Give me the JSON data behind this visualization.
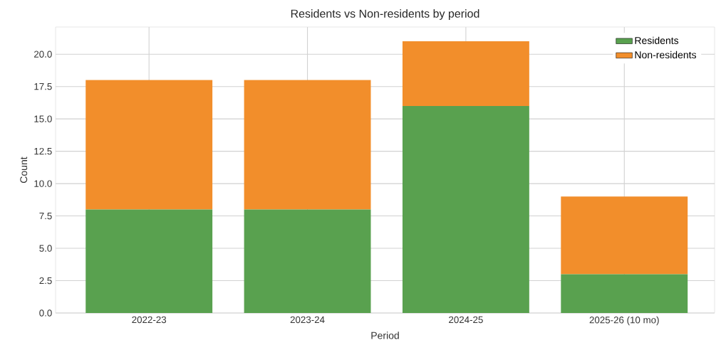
{
  "chart_data": {
    "type": "bar",
    "title": "Residents vs Non-residents by period",
    "xlabel": "Period",
    "ylabel": "Count",
    "categories": [
      "2022-23",
      "2023-24",
      "2024-25",
      "2025-26 (10 mo)"
    ],
    "stacked": true,
    "series": [
      {
        "name": "Residents",
        "color": "#59a14f",
        "values": [
          8,
          8,
          16,
          3
        ]
      },
      {
        "name": "Non-residents",
        "color": "#f28e2b",
        "values": [
          10,
          10,
          5,
          6
        ]
      }
    ],
    "ylim": [
      0,
      22.1
    ],
    "yticks": [
      {
        "value": 0,
        "label": "0.0"
      },
      {
        "value": 2.5,
        "label": "2.5"
      },
      {
        "value": 5,
        "label": "5.0"
      },
      {
        "value": 7.5,
        "label": "7.5"
      },
      {
        "value": 10,
        "label": "10.0"
      },
      {
        "value": 12.5,
        "label": "12.5"
      },
      {
        "value": 15,
        "label": "15.0"
      },
      {
        "value": 17.5,
        "label": "17.5"
      },
      {
        "value": 20,
        "label": "20.0"
      }
    ],
    "grid": true,
    "legend": "top right"
  }
}
